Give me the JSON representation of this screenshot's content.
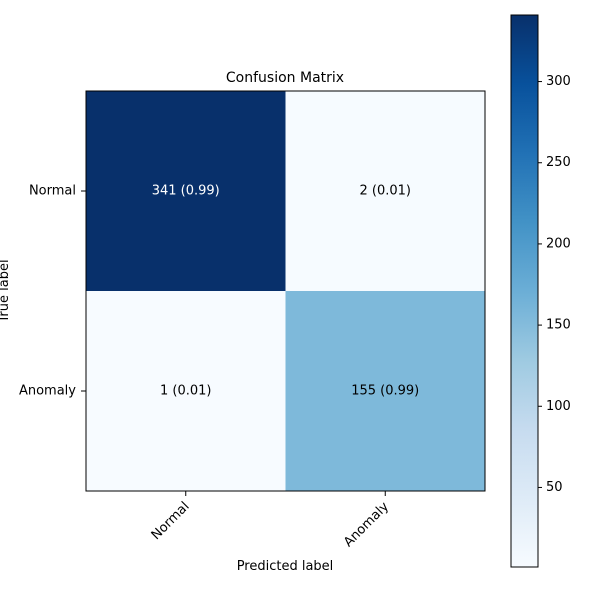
{
  "chart_data": {
    "type": "heatmap",
    "title": "Confusion Matrix",
    "xlabel": "Predicted label",
    "ylabel": "True label",
    "x_categories": [
      "Normal",
      "Anomaly"
    ],
    "y_categories": [
      "Normal",
      "Anomaly"
    ],
    "values": [
      [
        341,
        2
      ],
      [
        1,
        155
      ]
    ],
    "cell_labels": [
      [
        "341 (0.99)",
        "2 (0.01)"
      ],
      [
        "1 (0.01)",
        "155 (0.99)"
      ]
    ],
    "colormap": "Blues",
    "colorbar": {
      "range": [
        1,
        341
      ],
      "ticks": [
        50,
        100,
        150,
        200,
        250,
        300
      ],
      "tick_labels": [
        "50",
        "100",
        "150",
        "200",
        "250",
        "300"
      ]
    },
    "grid": false,
    "legend": "colorbar-right"
  }
}
